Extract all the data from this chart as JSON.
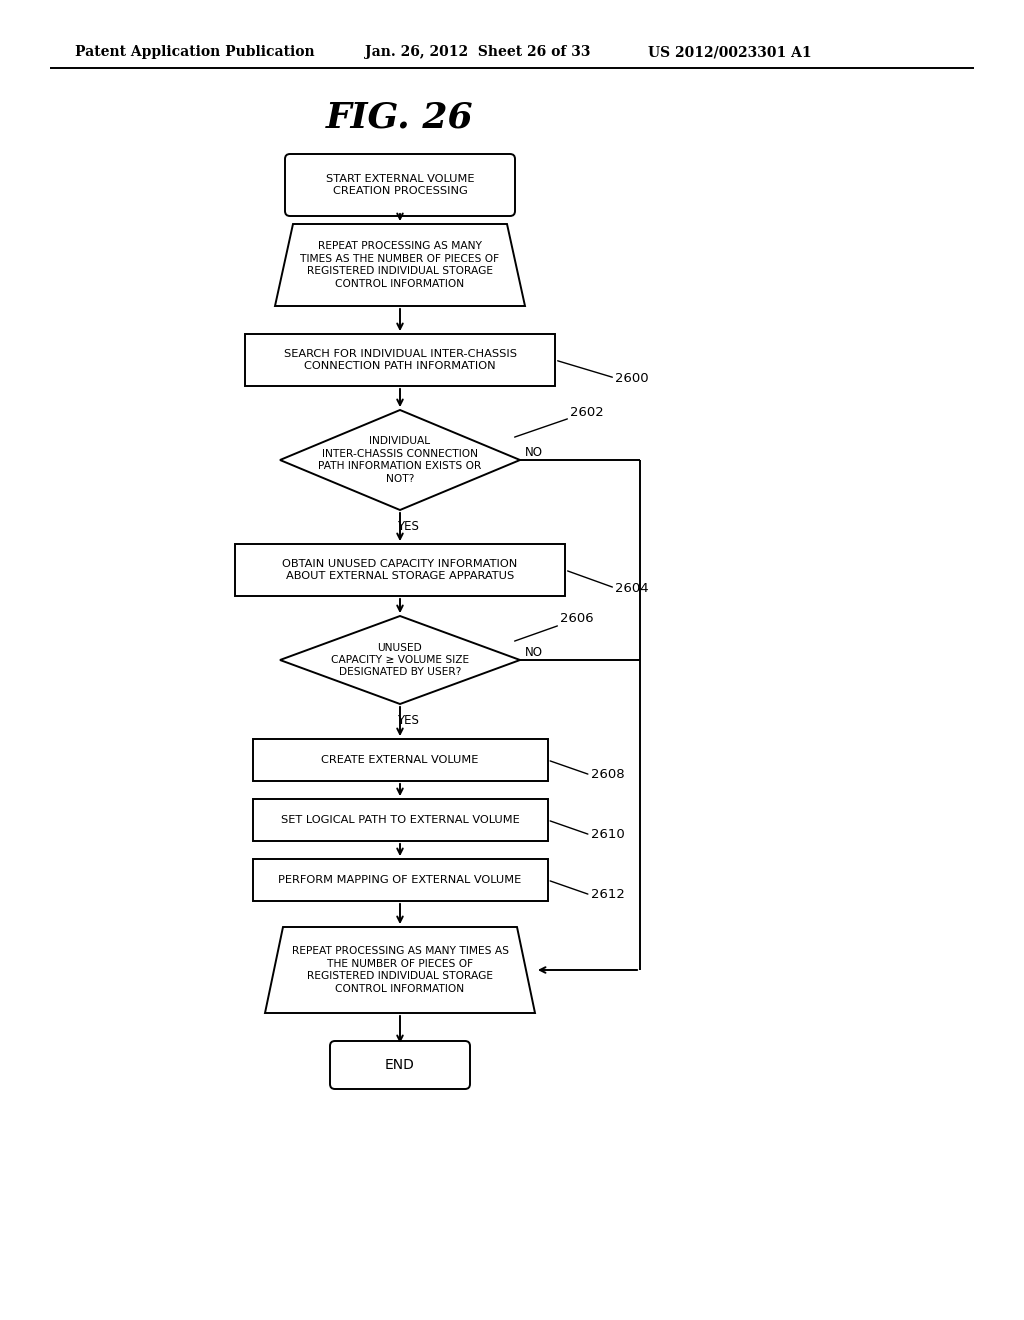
{
  "bg_color": "#ffffff",
  "header_left": "Patent Application Publication",
  "header_mid": "Jan. 26, 2012  Sheet 26 of 33",
  "header_right": "US 2012/0023301 A1",
  "title": "FIG. 26",
  "figsize": [
    10.24,
    13.2
  ],
  "dpi": 100
}
